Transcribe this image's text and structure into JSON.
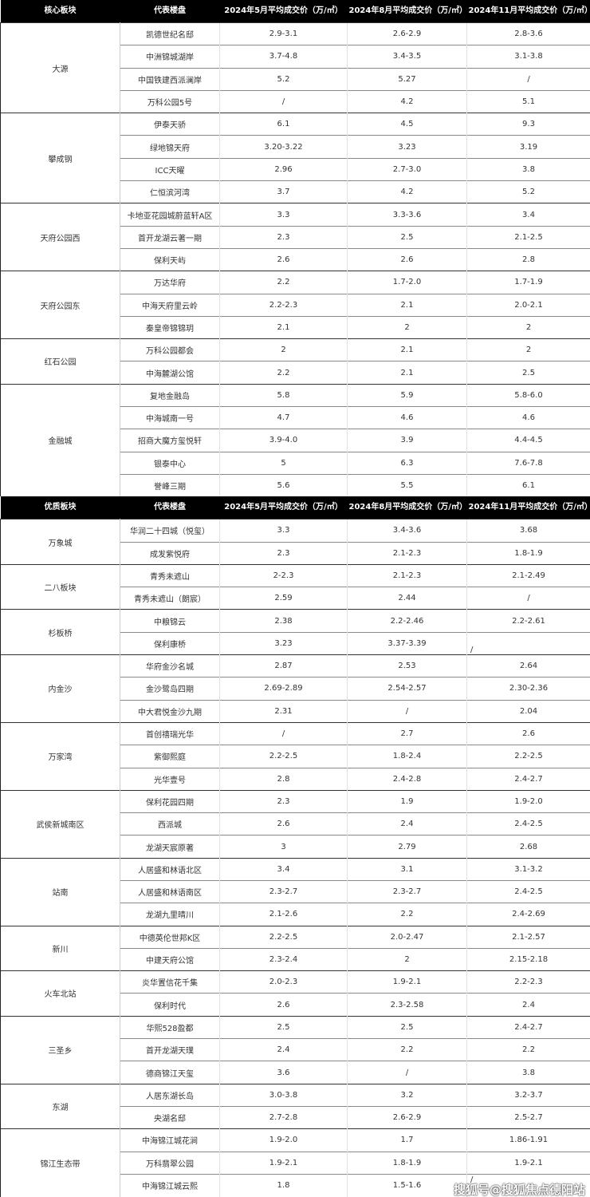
{
  "sections": [
    {
      "headers": [
        "核心板块",
        "代表楼盘",
        "2024年5月平均成交价（万/㎡）",
        "2024年8月平均成交价（万/㎡）",
        "2024年11月平均成交价（万/㎡）"
      ],
      "groups": [
        {
          "name": "大源",
          "rows": [
            [
              "凯德世纪名邸",
              "2.9-3.1",
              "2.6-2.9",
              "2.8-3.6"
            ],
            [
              "中洲锦城湖岸",
              "3.7-4.8",
              "3.4-3.5",
              "3.1-3.8"
            ],
            [
              "中国铁建西派澜岸",
              "5.2",
              "5.27",
              "/"
            ],
            [
              "万科公园5号",
              "/",
              "4.2",
              "5.1"
            ]
          ]
        },
        {
          "name": "攀成钢",
          "rows": [
            [
              "伊泰天骄",
              "6.1",
              "4.5",
              "9.3"
            ],
            [
              "绿地锦天府",
              "3.20-3.22",
              "3.23",
              "3.19"
            ],
            [
              "ICC天曜",
              "2.96",
              "2.7-3.0",
              "3.8"
            ],
            [
              "仁恒滨河湾",
              "3.7",
              "4.2",
              "5.2"
            ]
          ]
        },
        {
          "name": "天府公园西",
          "rows": [
            [
              "卡地亚花园城蔚蓝轩A区",
              "3.3",
              "3.3-3.6",
              "3.4"
            ],
            [
              "首开龙湖云著一期",
              "2.3",
              "2.5",
              "2.1-2.5"
            ],
            [
              "保利天屿",
              "2.6",
              "2.6",
              "2.8"
            ]
          ]
        },
        {
          "name": "天府公园东",
          "rows": [
            [
              "万达华府",
              "2.2",
              "1.7-2.0",
              "1.7-1.9"
            ],
            [
              "中海天府里云岭",
              "2.2-2.3",
              "2.1",
              "2.0-2.1"
            ],
            [
              "秦皇帝锦锦玥",
              "2.1",
              "2",
              "2"
            ]
          ]
        },
        {
          "name": "红石公园",
          "rows": [
            [
              "万科公园都会",
              "2",
              "2.1",
              "2"
            ],
            [
              "中海麓湖公馆",
              "2.2",
              "2.1",
              "2.5"
            ]
          ]
        },
        {
          "name": "金融城",
          "rows": [
            [
              "复地金融岛",
              "5.8",
              "5.9",
              "5.8-6.0"
            ],
            [
              "中海城南一号",
              "4.7",
              "4.6",
              "4.6"
            ],
            [
              "招商大魔方玺悦轩",
              "3.9-4.0",
              "3.9",
              "4.4-4.5"
            ],
            [
              "银泰中心",
              "5",
              "6.3",
              "7.6-7.8"
            ],
            [
              "誉峰三期",
              "5.6",
              "5.5",
              "6.1"
            ]
          ]
        }
      ]
    },
    {
      "headers": [
        "优质板块",
        "代表楼盘",
        "2024年5月平均成交价（万/㎡）",
        "2024年8月平均成交价（万/㎡）",
        "2024年11月平均成交价（万/㎡）"
      ],
      "groups": [
        {
          "name": "万象城",
          "rows": [
            [
              "华润二十四城（悦玺）",
              "3.3",
              "3.4-3.6",
              "3.68"
            ],
            [
              "成发紫悦府",
              "2.3",
              "2.1-2.3",
              "1.8-1.9"
            ]
          ]
        },
        {
          "name": "二八板块",
          "rows": [
            [
              "青秀未遮山",
              "2-2.3",
              "2.1-2.3",
              "2.1-2.49"
            ],
            [
              "青秀未遮山（朗宸）",
              "2.59",
              "2.44",
              "/"
            ]
          ]
        },
        {
          "name": "杉板桥",
          "rows": [
            [
              "中粮锦云",
              "2.38",
              "2.2-2.46",
              "2.2-2.61"
            ],
            [
              "保利康桥",
              "3.23",
              "3.37-3.39",
              "/"
            ]
          ]
        },
        {
          "name": "内金沙",
          "rows": [
            [
              "华府金沙名城",
              "2.87",
              "2.53",
              "2.64"
            ],
            [
              "金沙鹭岛四期",
              "2.69-2.89",
              "2.54-2.57",
              "2.30-2.36"
            ],
            [
              "中大君悦金沙九期",
              "2.31",
              "/",
              "2.04"
            ]
          ]
        },
        {
          "name": "万家湾",
          "rows": [
            [
              "首创禧瑞光华",
              "/",
              "2.7",
              "2.6"
            ],
            [
              "紫御熙庭",
              "2.2-2.5",
              "1.8-2.4",
              "2.2-2.5"
            ],
            [
              "光华壹号",
              "2.8",
              "2.4-2.8",
              "2.4-2.7"
            ]
          ]
        },
        {
          "name": "武侯新城南区",
          "rows": [
            [
              "保利花园四期",
              "2.3",
              "1.9",
              "1.9-2.0"
            ],
            [
              "西派城",
              "2.6",
              "2.4",
              "2.4-2.5"
            ],
            [
              "龙湖天宸原著",
              "3",
              "2.79",
              "2.68"
            ]
          ]
        },
        {
          "name": "站南",
          "rows": [
            [
              "人居盛和林语北区",
              "3.4",
              "3.1",
              "3.1-3.2"
            ],
            [
              "人居盛和林语南区",
              "2.3-2.7",
              "2.3-2.7",
              "2.4-2.5"
            ],
            [
              "龙湖九里晴川",
              "2.1-2.6",
              "2.2",
              "2.4-2.69"
            ]
          ]
        },
        {
          "name": "新川",
          "rows": [
            [
              "中德英伦世邦K区",
              "2.2-2.5",
              "2.0-2.47",
              "2.1-2.57"
            ],
            [
              "中建天府公馆",
              "2.3-2.4",
              "2",
              "2.15-2.18"
            ]
          ]
        },
        {
          "name": "火车北站",
          "rows": [
            [
              "炎华置信花千集",
              "2.0-2.3",
              "1.9-2.1",
              "2.2-2.3"
            ],
            [
              "保利时代",
              "2.6",
              "2.3-2.58",
              "2.4"
            ]
          ]
        },
        {
          "name": "三圣乡",
          "rows": [
            [
              "华熙528盈都",
              "2.5",
              "2.5",
              "2.4-2.7"
            ],
            [
              "首开龙湖天璞",
              "2.4",
              "2.2",
              "2.2"
            ],
            [
              "德商锦江天玺",
              "3.6",
              "/",
              "3.8"
            ]
          ]
        },
        {
          "name": "东湖",
          "rows": [
            [
              "人居东湖长岛",
              "3.0-3.8",
              "3.2",
              "3.2-3.7"
            ],
            [
              "央湖名邸",
              "2.7-2.8",
              "2.6-2.9",
              "2.5-2.7"
            ]
          ]
        },
        {
          "name": "锦江生态带",
          "rows": [
            [
              "中海锦江城花涧",
              "1.9-2.0",
              "1.7",
              "1.86-1.91"
            ],
            [
              "万科翡翠公园",
              "1.9-2.1",
              "1.8-1.9",
              "1.9-2.1"
            ],
            [
              "中海锦江城云熙",
              "1.8",
              "1.5-1.6",
              "/"
            ]
          ]
        }
      ]
    }
  ],
  "watermark": "搜狐号@搜狐焦点德阳站"
}
